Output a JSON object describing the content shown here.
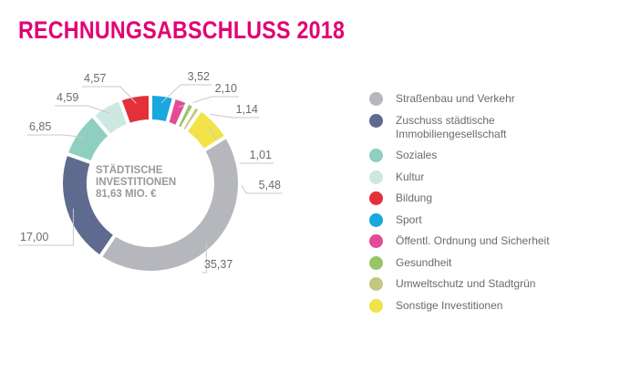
{
  "title": "RECHNUNGSABSCHLUSS 2018",
  "chart_data": {
    "type": "pie",
    "donut": true,
    "center_label": [
      "STÄDTISCHE",
      "INVESTITIONEN",
      "81,63 MIO. €"
    ],
    "legend_position": "right",
    "categories": [
      "Straßenbau und Verkehr",
      "Zuschuss städtische Immobiliengesellschaft",
      "Soziales",
      "Kultur",
      "Bildung",
      "Sport",
      "Öffentl. Ordnung und Sicherheit",
      "Gesundheit",
      "Umweltschutz und Stadtgrün",
      "Sonstige Investitionen"
    ],
    "legend_lines": [
      [
        "Straßenbau und Verkehr"
      ],
      [
        "Zuschuss städtische",
        "Immobiliengesellschaft"
      ],
      [
        "Soziales"
      ],
      [
        "Kultur"
      ],
      [
        "Bildung"
      ],
      [
        "Sport"
      ],
      [
        "Öffentl. Ordnung und Sicherheit"
      ],
      [
        "Gesundheit"
      ],
      [
        "Umweltschutz und Stadtgrün"
      ],
      [
        "Sonstige Investitionen"
      ]
    ],
    "values": [
      35.37,
      17.0,
      6.85,
      4.59,
      4.57,
      3.52,
      2.1,
      1.14,
      1.01,
      5.48
    ],
    "value_labels": [
      "35,37",
      "17,00",
      "6,85",
      "4,59",
      "4,57",
      "3,52",
      "2,10",
      "1,14",
      "1,01",
      "5,48"
    ],
    "colors": [
      "#b6b7bc",
      "#5f6b8e",
      "#8ecfc0",
      "#cde8e0",
      "#e3303a",
      "#1aa6de",
      "#e24b98",
      "#98c665",
      "#c6c77e",
      "#f1e348"
    ],
    "clockwise_order_from_top": [
      "Sport",
      "Öffentl. Ordnung und Sicherheit",
      "Gesundheit",
      "Umweltschutz und Stadtgrün",
      "Sonstige Investitionen",
      "Straßenbau und Verkehr",
      "Zuschuss städtische Immobiliengesellschaft",
      "Soziales",
      "Kultur",
      "Bildung"
    ]
  }
}
